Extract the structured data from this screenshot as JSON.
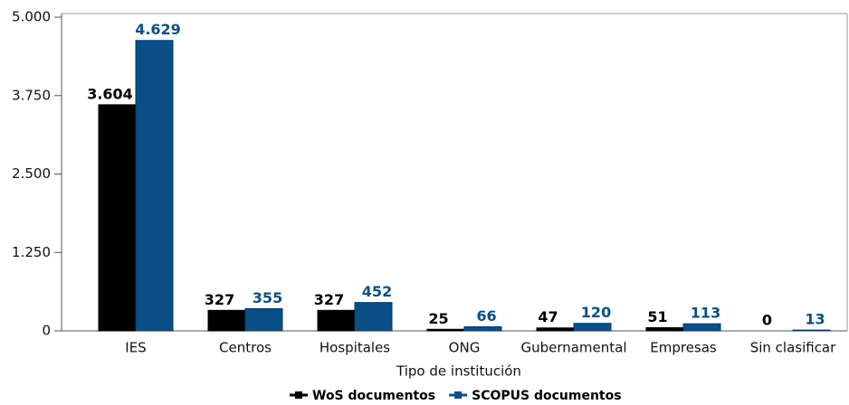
{
  "chart_data": {
    "type": "bar",
    "x_label": "Tipo de institución",
    "categories": [
      "IES",
      "Centros",
      "Hospitales",
      "ONG",
      "Gubernamental",
      "Empresas",
      "Sin clasificar"
    ],
    "series": [
      {
        "name": "WoS documentos",
        "color": "#000000",
        "values": [
          3604,
          327,
          327,
          25,
          47,
          51,
          0
        ],
        "value_labels": [
          "3.604",
          "327",
          "327",
          "25",
          "47",
          "51",
          "0"
        ]
      },
      {
        "name": "SCOPUS documentos",
        "color": "#0b4f87",
        "values": [
          4629,
          355,
          452,
          66,
          120,
          113,
          13
        ],
        "value_labels": [
          "4.629",
          "355",
          "452",
          "66",
          "120",
          "113",
          "13"
        ]
      }
    ],
    "ylim": [
      0,
      5000
    ],
    "yticks": [
      {
        "value": 0,
        "label": "0"
      },
      {
        "value": 1250,
        "label": "1.250"
      },
      {
        "value": 2500,
        "label": "2.500"
      },
      {
        "value": 3750,
        "label": "3.750"
      },
      {
        "value": 5000,
        "label": "5.000"
      }
    ],
    "legend": "bottom"
  }
}
